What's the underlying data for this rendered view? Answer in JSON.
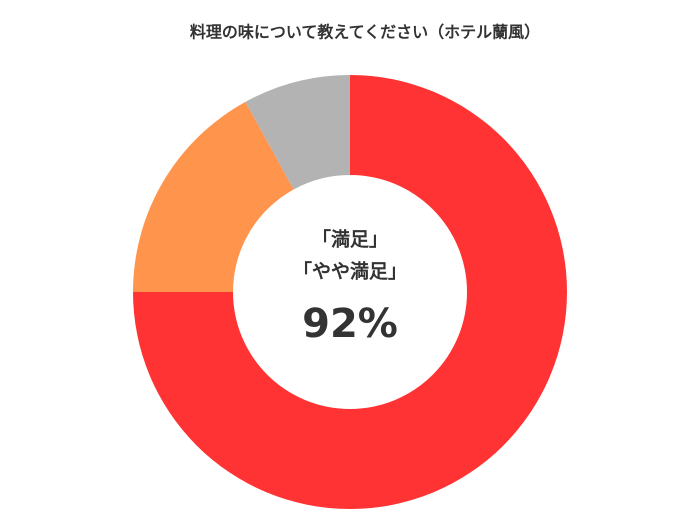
{
  "chart_data": {
    "type": "donut",
    "title": "料理の味について教えてください（ホテル蘭風）",
    "values": [
      75,
      17,
      8
    ],
    "colors": [
      "#ff3333",
      "#ff944d",
      "#b3b3b3"
    ],
    "center_lines": [
      "「満足」",
      "「やや満足」"
    ],
    "center_value": {
      "value": 92,
      "label": "92%"
    }
  }
}
